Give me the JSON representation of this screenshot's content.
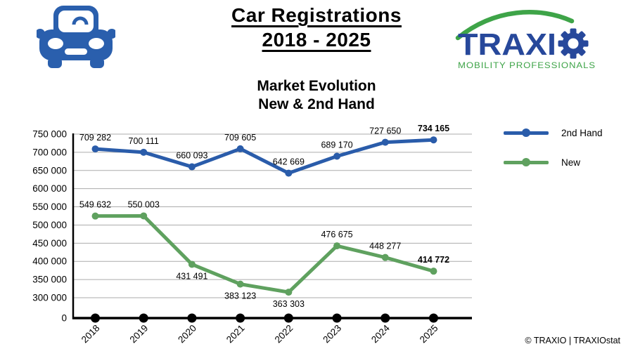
{
  "header": {
    "title_line1": "Car Registrations",
    "title_line2": "2018 - 2025",
    "car_icon": "car-icon",
    "logo": {
      "brand_letters": "TRAXI",
      "gear_icon": "gear-o-icon",
      "tagline": "MOBILITY PROFESSIONALS",
      "blue": "#27489B",
      "green": "#3EA448"
    },
    "car_icon_color": "#2A5FAD"
  },
  "chart_title_line1": "Market Evolution",
  "chart_title_line2": "New & 2nd Hand",
  "footer": {
    "credit": "© TRAXIO | TRAXIOstat"
  },
  "chart_data": {
    "type": "line",
    "title": "Market Evolution New & 2nd Hand",
    "categories": [
      "2018",
      "2019",
      "2020",
      "2021",
      "2022",
      "2023",
      "2024",
      "2025"
    ],
    "yticks": [
      750000,
      700000,
      650000,
      600000,
      550000,
      500000,
      450000,
      400000,
      350000,
      300000,
      0
    ],
    "ylim_grid": [
      300000,
      750000
    ],
    "grid": "on",
    "legend_position": "right",
    "colors": {
      "grid": "#ABABAB",
      "axis": "#000000"
    },
    "series": [
      {
        "name": "2nd Hand",
        "color": "#2A5CAA",
        "axis": "primary",
        "in_legend": true,
        "show_labels": true,
        "last_label_bold": true,
        "values": [
          709282,
          700111,
          660093,
          709605,
          642669,
          689170,
          727650,
          734165
        ],
        "label_positions": [
          "above",
          "above",
          "above",
          "above",
          "above",
          "above",
          "above",
          "above"
        ]
      },
      {
        "name": "New",
        "color": "#5FA15F",
        "axis": "secondary",
        "in_legend": true,
        "show_labels": true,
        "last_label_bold": true,
        "values": [
          549632,
          550003,
          431491,
          383123,
          363303,
          476675,
          448277,
          414772
        ],
        "label_positions": [
          "above",
          "above",
          "below",
          "below",
          "below",
          "above",
          "above",
          "above"
        ]
      },
      {
        "name": "baseline",
        "color": "#000000",
        "axis": "zero",
        "in_legend": false,
        "show_labels": false,
        "last_label_bold": false,
        "values": [
          0,
          0,
          0,
          0,
          0,
          0,
          0,
          0
        ],
        "label_positions": [
          "above",
          "above",
          "above",
          "above",
          "above",
          "above",
          "above",
          "above"
        ]
      }
    ]
  }
}
